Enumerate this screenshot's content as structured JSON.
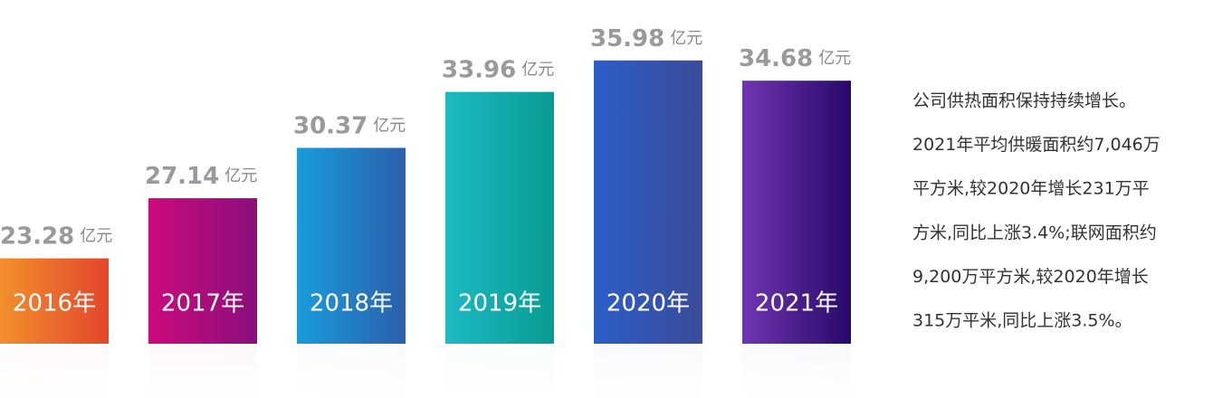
{
  "chart_data": {
    "type": "bar",
    "categories": [
      "2016年",
      "2017年",
      "2018年",
      "2019年",
      "2020年",
      "2021年"
    ],
    "values": [
      23.28,
      27.14,
      30.37,
      33.96,
      35.98,
      34.68
    ],
    "unit": "亿元",
    "colors": [
      [
        "#f28f2d",
        "#e3462b"
      ],
      [
        "#cc0a7c",
        "#8a0f7b"
      ],
      [
        "#1a9cdc",
        "#2b5fab"
      ],
      [
        "#1cbac2",
        "#089c92"
      ],
      [
        "#2c5ec9",
        "#3b4b98"
      ],
      [
        "#7036b2",
        "#270867"
      ]
    ],
    "ylim": [
      17.8,
      38
    ],
    "annotations": [
      "公司供热面积保持持续增长。",
      "2021年平均供暖面积约7,046万",
      "平方米,较2020年增长231万平",
      "方米,同比上涨3.4%;联网面积约",
      "9,200万平方米,较2020年增长",
      "315万平米,同比上涨3.5%。"
    ]
  }
}
